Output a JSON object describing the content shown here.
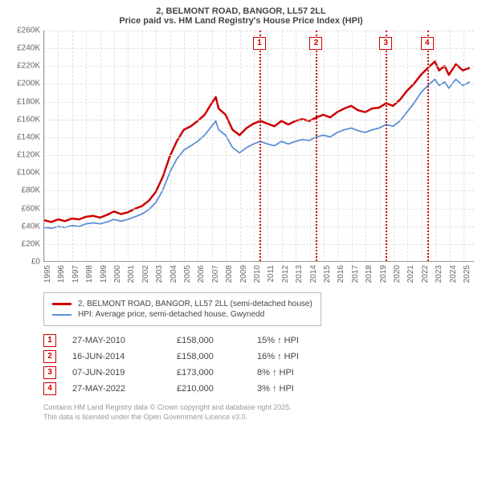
{
  "title_line1": "2, BELMONT ROAD, BANGOR, LL57 2LL",
  "title_line2": "Price paid vs. HM Land Registry's House Price Index (HPI)",
  "chart": {
    "type": "line",
    "xlim": [
      1995,
      2025.8
    ],
    "ylim": [
      0,
      260000
    ],
    "ytick_step": 20000,
    "y_ticks": [
      "£0",
      "£20K",
      "£40K",
      "£60K",
      "£80K",
      "£100K",
      "£120K",
      "£140K",
      "£160K",
      "£180K",
      "£200K",
      "£220K",
      "£240K",
      "£260K"
    ],
    "x_ticks": [
      1995,
      1996,
      1997,
      1998,
      1999,
      2000,
      2001,
      2002,
      2003,
      2004,
      2005,
      2006,
      2007,
      2008,
      2009,
      2010,
      2011,
      2012,
      2013,
      2014,
      2015,
      2016,
      2017,
      2018,
      2019,
      2020,
      2021,
      2022,
      2023,
      2024,
      2025
    ],
    "background_color": "#ffffff",
    "grid_color": "#e0e0e0",
    "series": [
      {
        "name": "price_paid",
        "color": "#cc0000",
        "width": 2.5,
        "points": [
          [
            1995,
            46000
          ],
          [
            1995.5,
            44000
          ],
          [
            1996,
            47000
          ],
          [
            1996.5,
            45000
          ],
          [
            1997,
            48000
          ],
          [
            1997.5,
            47000
          ],
          [
            1998,
            50000
          ],
          [
            1998.5,
            51000
          ],
          [
            1999,
            49000
          ],
          [
            1999.5,
            52000
          ],
          [
            2000,
            56000
          ],
          [
            2000.5,
            53000
          ],
          [
            2001,
            55000
          ],
          [
            2001.5,
            59000
          ],
          [
            2002,
            62000
          ],
          [
            2002.5,
            68000
          ],
          [
            2003,
            78000
          ],
          [
            2003.5,
            95000
          ],
          [
            2004,
            118000
          ],
          [
            2004.5,
            135000
          ],
          [
            2005,
            148000
          ],
          [
            2005.5,
            152000
          ],
          [
            2006,
            158000
          ],
          [
            2006.5,
            165000
          ],
          [
            2007,
            178000
          ],
          [
            2007.3,
            185000
          ],
          [
            2007.5,
            172000
          ],
          [
            2008,
            165000
          ],
          [
            2008.5,
            148000
          ],
          [
            2009,
            142000
          ],
          [
            2009.5,
            150000
          ],
          [
            2010,
            155000
          ],
          [
            2010.5,
            158000
          ],
          [
            2011,
            155000
          ],
          [
            2011.5,
            152000
          ],
          [
            2012,
            158000
          ],
          [
            2012.5,
            154000
          ],
          [
            2013,
            158000
          ],
          [
            2013.5,
            160000
          ],
          [
            2014,
            158000
          ],
          [
            2014.5,
            162000
          ],
          [
            2015,
            165000
          ],
          [
            2015.5,
            162000
          ],
          [
            2016,
            168000
          ],
          [
            2016.5,
            172000
          ],
          [
            2017,
            175000
          ],
          [
            2017.5,
            170000
          ],
          [
            2018,
            168000
          ],
          [
            2018.5,
            172000
          ],
          [
            2019,
            173000
          ],
          [
            2019.5,
            178000
          ],
          [
            2020,
            175000
          ],
          [
            2020.5,
            182000
          ],
          [
            2021,
            192000
          ],
          [
            2021.5,
            200000
          ],
          [
            2022,
            210000
          ],
          [
            2022.5,
            218000
          ],
          [
            2023,
            225000
          ],
          [
            2023.3,
            215000
          ],
          [
            2023.7,
            220000
          ],
          [
            2024,
            210000
          ],
          [
            2024.5,
            222000
          ],
          [
            2025,
            215000
          ],
          [
            2025.5,
            218000
          ]
        ]
      },
      {
        "name": "hpi",
        "color": "#5b8fd6",
        "width": 1.8,
        "points": [
          [
            1995,
            38000
          ],
          [
            1995.5,
            37000
          ],
          [
            1996,
            39000
          ],
          [
            1996.5,
            38000
          ],
          [
            1997,
            40000
          ],
          [
            1997.5,
            39000
          ],
          [
            1998,
            42000
          ],
          [
            1998.5,
            43000
          ],
          [
            1999,
            42000
          ],
          [
            1999.5,
            44000
          ],
          [
            2000,
            47000
          ],
          [
            2000.5,
            45000
          ],
          [
            2001,
            47000
          ],
          [
            2001.5,
            50000
          ],
          [
            2002,
            53000
          ],
          [
            2002.5,
            58000
          ],
          [
            2003,
            66000
          ],
          [
            2003.5,
            80000
          ],
          [
            2004,
            100000
          ],
          [
            2004.5,
            115000
          ],
          [
            2005,
            125000
          ],
          [
            2005.5,
            130000
          ],
          [
            2006,
            135000
          ],
          [
            2006.5,
            142000
          ],
          [
            2007,
            152000
          ],
          [
            2007.3,
            158000
          ],
          [
            2007.5,
            148000
          ],
          [
            2008,
            142000
          ],
          [
            2008.5,
            128000
          ],
          [
            2009,
            122000
          ],
          [
            2009.5,
            128000
          ],
          [
            2010,
            132000
          ],
          [
            2010.5,
            135000
          ],
          [
            2011,
            132000
          ],
          [
            2011.5,
            130000
          ],
          [
            2012,
            135000
          ],
          [
            2012.5,
            132000
          ],
          [
            2013,
            135000
          ],
          [
            2013.5,
            137000
          ],
          [
            2014,
            136000
          ],
          [
            2014.5,
            140000
          ],
          [
            2015,
            142000
          ],
          [
            2015.5,
            140000
          ],
          [
            2016,
            145000
          ],
          [
            2016.5,
            148000
          ],
          [
            2017,
            150000
          ],
          [
            2017.5,
            147000
          ],
          [
            2018,
            145000
          ],
          [
            2018.5,
            148000
          ],
          [
            2019,
            150000
          ],
          [
            2019.5,
            154000
          ],
          [
            2020,
            152000
          ],
          [
            2020.5,
            158000
          ],
          [
            2021,
            168000
          ],
          [
            2021.5,
            178000
          ],
          [
            2022,
            190000
          ],
          [
            2022.5,
            198000
          ],
          [
            2023,
            205000
          ],
          [
            2023.3,
            198000
          ],
          [
            2023.7,
            202000
          ],
          [
            2024,
            195000
          ],
          [
            2024.5,
            205000
          ],
          [
            2025,
            198000
          ],
          [
            2025.5,
            202000
          ]
        ]
      }
    ],
    "markers": [
      {
        "n": "1",
        "x": 2010.4
      },
      {
        "n": "2",
        "x": 2014.45
      },
      {
        "n": "3",
        "x": 2019.43
      },
      {
        "n": "4",
        "x": 2022.4
      }
    ]
  },
  "legend": {
    "series1": {
      "label": "2, BELMONT ROAD, BANGOR, LL57 2LL (semi-detached house)",
      "color": "#cc0000"
    },
    "series2": {
      "label": "HPI: Average price, semi-detached house, Gwynedd",
      "color": "#5b8fd6"
    }
  },
  "sales": [
    {
      "n": "1",
      "date": "27-MAY-2010",
      "price": "£158,000",
      "pct": "15% ↑ HPI"
    },
    {
      "n": "2",
      "date": "16-JUN-2014",
      "price": "£158,000",
      "pct": "16% ↑ HPI"
    },
    {
      "n": "3",
      "date": "07-JUN-2019",
      "price": "£173,000",
      "pct": "8% ↑ HPI"
    },
    {
      "n": "4",
      "date": "27-MAY-2022",
      "price": "£210,000",
      "pct": "3% ↑ HPI"
    }
  ],
  "footer_line1": "Contains HM Land Registry data © Crown copyright and database right 2025.",
  "footer_line2": "This data is licensed under the Open Government Licence v3.0."
}
